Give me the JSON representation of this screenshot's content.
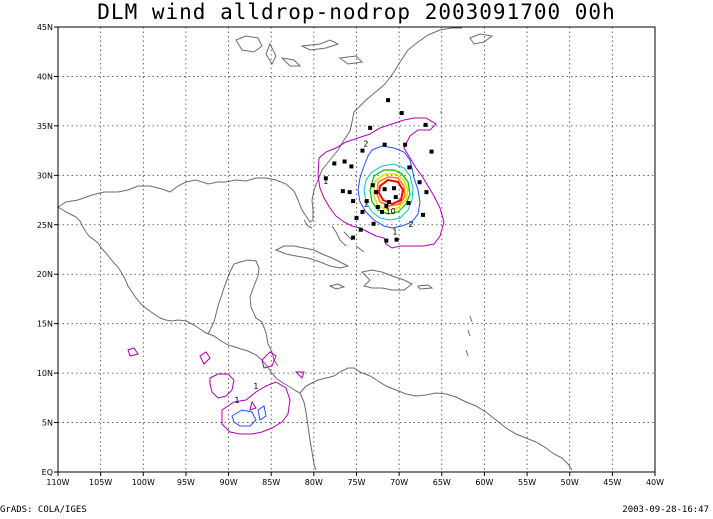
{
  "title": "DLM wind alldrop-nodrop 2003091700 00h",
  "footer": {
    "left": "GrADS: COLA/IGES",
    "right": "2003-09-28-16:47"
  },
  "map": {
    "lon_ticks": [
      "110W",
      "105W",
      "100W",
      "95W",
      "90W",
      "85W",
      "80W",
      "75W",
      "70W",
      "65W",
      "60W",
      "55W",
      "50W",
      "45W",
      "40W"
    ],
    "lat_ticks": [
      "EQ",
      "5N",
      "10N",
      "15N",
      "20N",
      "25N",
      "30N",
      "35N",
      "40N",
      "45N"
    ],
    "lon_range": [
      -110,
      -40
    ],
    "lat_range": [
      0,
      45
    ],
    "gridlines": "dotted",
    "contour_labels": [
      {
        "text": "2",
        "lon": -73.9,
        "lat": 32.9
      },
      {
        "text": "10",
        "lon": -71.0,
        "lat": 26.1
      },
      {
        "text": "2",
        "lon": -68.6,
        "lat": 24.8
      },
      {
        "text": "1",
        "lon": -70.5,
        "lat": 24.0
      },
      {
        "text": "1",
        "lon": -89.0,
        "lat": 7.0
      },
      {
        "text": "1",
        "lon": -86.8,
        "lat": 8.4
      },
      {
        "text": "1",
        "lon": -73.9,
        "lat": 26.8
      },
      {
        "text": "1",
        "lon": -78.6,
        "lat": 29.1
      }
    ],
    "dropsondes": [
      [
        -71.3,
        37.6
      ],
      [
        -69.7,
        36.3
      ],
      [
        -66.9,
        35.1
      ],
      [
        -73.4,
        34.8
      ],
      [
        -71.7,
        33.1
      ],
      [
        -69.3,
        33.1
      ],
      [
        -74.3,
        32.5
      ],
      [
        -66.2,
        32.4
      ],
      [
        -76.4,
        31.4
      ],
      [
        -77.6,
        31.2
      ],
      [
        -75.6,
        30.9
      ],
      [
        -68.8,
        30.8
      ],
      [
        -78.6,
        29.7
      ],
      [
        -67.6,
        29.3
      ],
      [
        -73.1,
        29.0
      ],
      [
        -72.7,
        28.3
      ],
      [
        -71.7,
        28.6
      ],
      [
        -70.6,
        28.7
      ],
      [
        -76.6,
        28.4
      ],
      [
        -75.8,
        28.3
      ],
      [
        -66.8,
        28.3
      ],
      [
        -70.4,
        27.8
      ],
      [
        -71.2,
        27.3
      ],
      [
        -71.5,
        26.9
      ],
      [
        -75.4,
        27.4
      ],
      [
        -73.8,
        27.4
      ],
      [
        -72.5,
        26.8
      ],
      [
        -68.9,
        27.2
      ],
      [
        -74.3,
        26.3
      ],
      [
        -72.0,
        26.3
      ],
      [
        -75.0,
        25.7
      ],
      [
        -73.0,
        25.1
      ],
      [
        -67.2,
        26.0
      ],
      [
        -70.3,
        23.5
      ],
      [
        -75.4,
        23.7
      ],
      [
        -71.5,
        23.4
      ],
      [
        -74.5,
        24.5
      ]
    ],
    "colors": {
      "coast": "#6b6b6b",
      "contour_magenta": "#b000b0",
      "contour_blue": "#2050ff",
      "contour_cyan": "#00c8c8",
      "contour_green": "#00c000",
      "contour_yellow": "#e0e000",
      "contour_orange": "#ff8000",
      "contour_red": "#ff0000",
      "dots": "#000000"
    }
  }
}
